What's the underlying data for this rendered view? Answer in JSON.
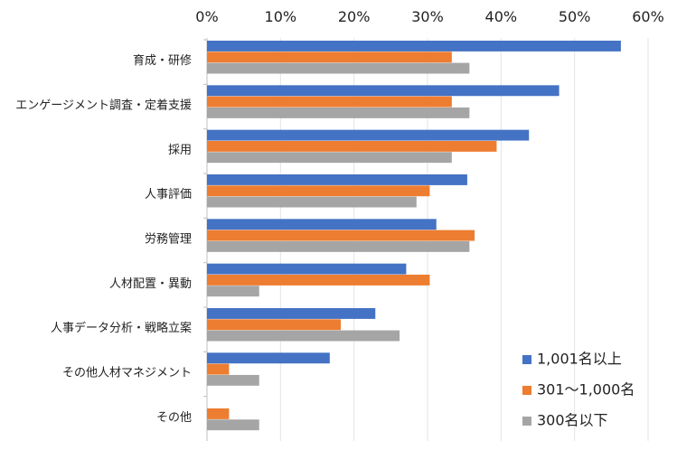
{
  "chart_data": {
    "type": "bar",
    "orientation": "horizontal",
    "categories": [
      "育成・研修",
      "エンゲージメント調査・定着支援",
      "採用",
      "人事評価",
      "労務管理",
      "人材配置・異動",
      "人事データ分析・戦略立案",
      "その他人材マネジメント",
      "その他"
    ],
    "series": [
      {
        "name": "1,001名以上",
        "color": "#4472C4",
        "values": [
          56.3,
          47.9,
          43.8,
          35.4,
          31.2,
          27.1,
          22.9,
          16.7,
          0
        ]
      },
      {
        "name": "301～1,000名",
        "color": "#ED7D31",
        "values": [
          33.3,
          33.3,
          39.4,
          30.3,
          36.4,
          30.3,
          18.2,
          3.0,
          3.0
        ]
      },
      {
        "name": "300名以下",
        "color": "#A5A5A5",
        "values": [
          35.7,
          35.7,
          33.3,
          28.5,
          35.7,
          7.1,
          26.2,
          7.1,
          7.1
        ]
      }
    ],
    "xlim": [
      0,
      60
    ],
    "x_ticks": [
      "0%",
      "10%",
      "20%",
      "30%",
      "40%",
      "50%",
      "60%"
    ],
    "x_axis_position": "top",
    "grid": true,
    "legend_position": "bottom-right"
  }
}
